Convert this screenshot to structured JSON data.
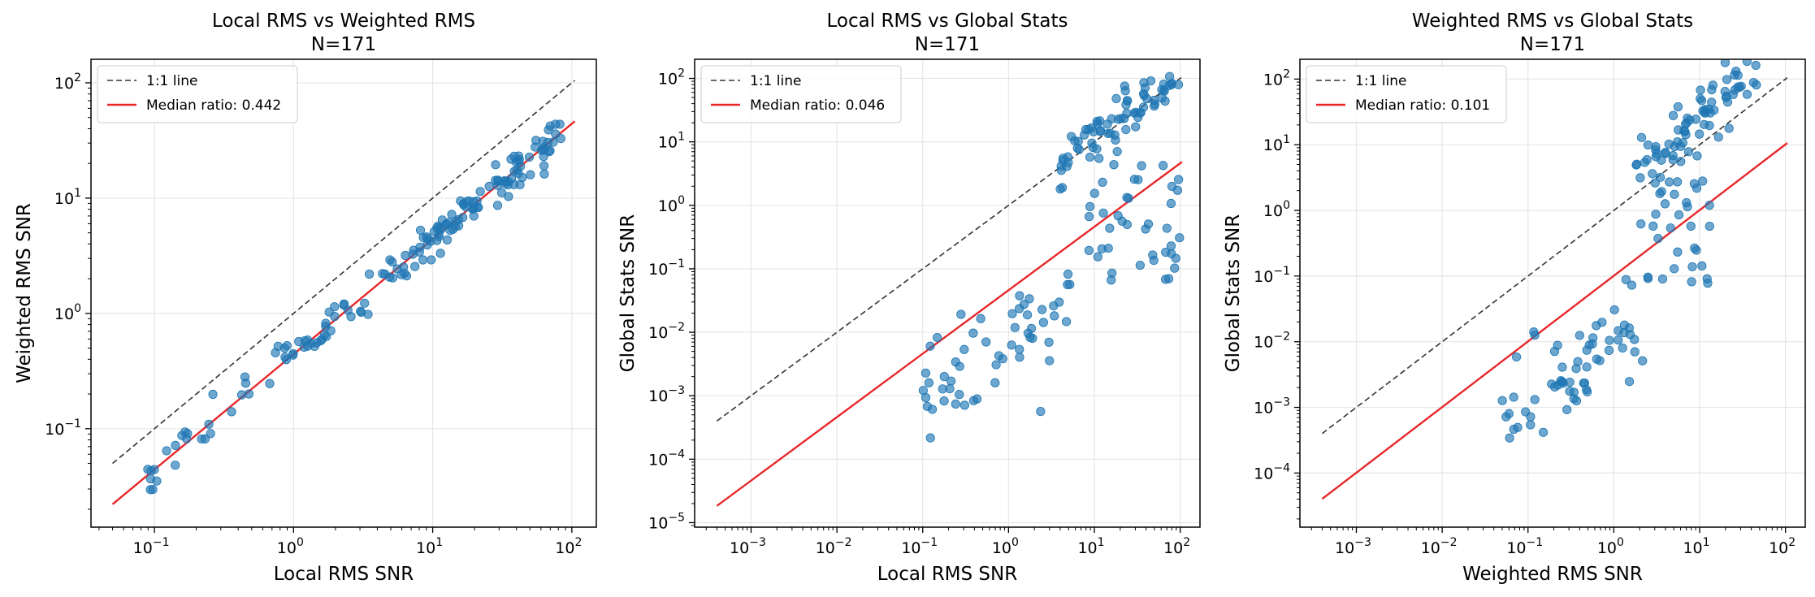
{
  "chart_data": [
    {
      "type": "scatter",
      "title": "Local RMS vs Weighted RMS",
      "subtitle": "N=171",
      "xlabel": "Local RMS SNR",
      "ylabel": "Weighted RMS SNR",
      "xscale": "log",
      "yscale": "log",
      "xlim": [
        0.035,
        150
      ],
      "ylim": [
        0.014,
        160
      ],
      "xticks": [
        {
          "v": 0.1,
          "m": "−1"
        },
        {
          "v": 1,
          "m": "0"
        },
        {
          "v": 10,
          "m": "1"
        },
        {
          "v": 100,
          "m": "2"
        }
      ],
      "yticks": [
        {
          "v": 0.1,
          "m": "−1"
        },
        {
          "v": 1,
          "m": "0"
        },
        {
          "v": 10,
          "m": "1"
        },
        {
          "v": 100,
          "m": "2"
        }
      ],
      "identity_line": {
        "label": "1:1 line",
        "from": 0.05,
        "to": 105,
        "slope": 1
      },
      "median_line": {
        "label": "Median ratio: 0.442",
        "from": 0.05,
        "to": 105,
        "ratio": 0.442
      },
      "legend_position": "upper-left",
      "grid": true,
      "seed": 11
    },
    {
      "type": "scatter",
      "title": "Local RMS vs Global Stats",
      "subtitle": "N=171",
      "xlabel": "Local RMS SNR",
      "ylabel": "Global Stats SNR",
      "xscale": "log",
      "yscale": "log",
      "xlim": [
        0.00022,
        170
      ],
      "ylim": [
        8.5e-06,
        200
      ],
      "xticks": [
        {
          "v": 0.001,
          "m": "−3"
        },
        {
          "v": 0.01,
          "m": "−2"
        },
        {
          "v": 0.1,
          "m": "−1"
        },
        {
          "v": 1,
          "m": "0"
        },
        {
          "v": 10,
          "m": "1"
        },
        {
          "v": 100,
          "m": "2"
        }
      ],
      "yticks": [
        {
          "v": 1e-05,
          "m": "−5"
        },
        {
          "v": 0.0001,
          "m": "−4"
        },
        {
          "v": 0.001,
          "m": "−3"
        },
        {
          "v": 0.01,
          "m": "−2"
        },
        {
          "v": 0.1,
          "m": "−1"
        },
        {
          "v": 1,
          "m": "0"
        },
        {
          "v": 10,
          "m": "1"
        },
        {
          "v": 100,
          "m": "2"
        }
      ],
      "identity_line": {
        "label": "1:1 line",
        "from": 0.0004,
        "to": 105,
        "slope": 1
      },
      "median_line": {
        "label": "Median ratio: 0.046",
        "from": 0.0004,
        "to": 105,
        "ratio": 0.046
      },
      "legend_position": "upper-left",
      "grid": true,
      "seed": 23
    },
    {
      "type": "scatter",
      "title": "Weighted RMS vs Global Stats",
      "subtitle": "N=171",
      "xlabel": "Weighted RMS SNR",
      "ylabel": "Global Stats SNR",
      "xscale": "log",
      "yscale": "log",
      "xlim": [
        0.00022,
        170
      ],
      "ylim": [
        1.5e-05,
        200
      ],
      "xticks": [
        {
          "v": 0.001,
          "m": "−3"
        },
        {
          "v": 0.01,
          "m": "−2"
        },
        {
          "v": 0.1,
          "m": "−1"
        },
        {
          "v": 1,
          "m": "0"
        },
        {
          "v": 10,
          "m": "1"
        },
        {
          "v": 100,
          "m": "2"
        }
      ],
      "yticks": [
        {
          "v": 0.0001,
          "m": "−4"
        },
        {
          "v": 0.001,
          "m": "−3"
        },
        {
          "v": 0.01,
          "m": "−2"
        },
        {
          "v": 0.1,
          "m": "−1"
        },
        {
          "v": 1,
          "m": "0"
        },
        {
          "v": 10,
          "m": "1"
        },
        {
          "v": 100,
          "m": "2"
        }
      ],
      "identity_line": {
        "label": "1:1 line",
        "from": 0.0004,
        "to": 105,
        "slope": 1
      },
      "median_line": {
        "label": "Median ratio: 0.101",
        "from": 0.0004,
        "to": 105,
        "ratio": 0.101
      },
      "legend_position": "upper-left",
      "grid": true,
      "seed": 37
    }
  ],
  "colors": {
    "points": "#1f77b4",
    "median_line": "#e8272a",
    "identity_line": "#333333",
    "grid": "#e6e6e6"
  }
}
